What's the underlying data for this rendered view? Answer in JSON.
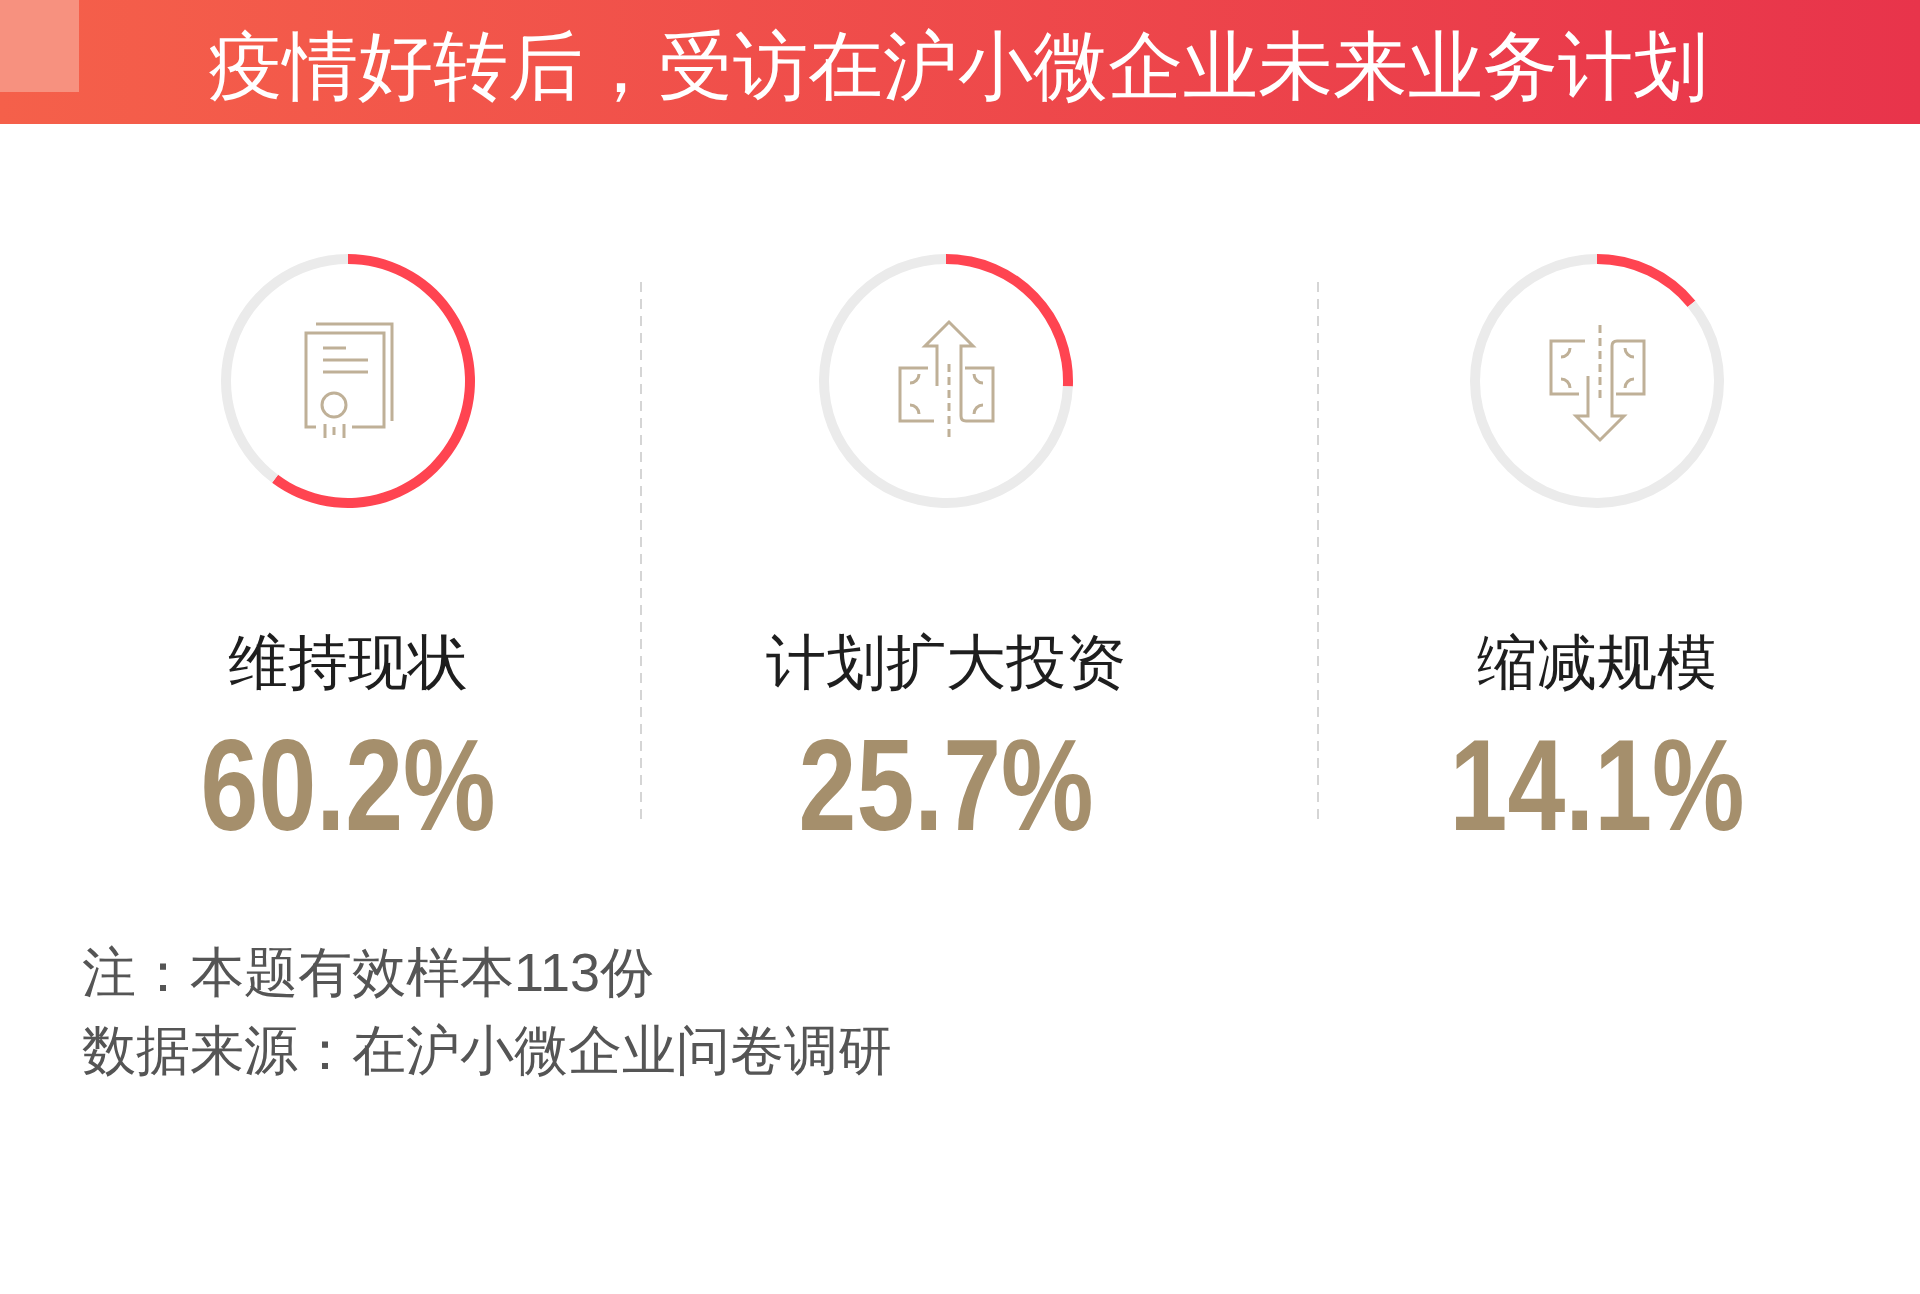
{
  "chart_data": [
    {
      "type": "other",
      "title": "疫情好转后，受访在沪小微企业未来业务计划"
    },
    {
      "type": "donut",
      "title": "维持现状",
      "categories": [
        null,
        null
      ],
      "values": [
        60.2,
        39.8
      ],
      "colors": [
        "#ff4451",
        "#ebebeb"
      ],
      "annotations": [
        "60.2%"
      ]
    },
    {
      "type": "donut",
      "title": "计划扩大投资",
      "categories": [
        null,
        null
      ],
      "values": [
        25.7,
        74.3
      ],
      "colors": [
        "#ff4451",
        "#ebebeb"
      ],
      "annotations": [
        "25.7%"
      ]
    },
    {
      "type": "donut",
      "title": "缩减规模",
      "categories": [
        null,
        null
      ],
      "values": [
        14.1,
        85.9
      ],
      "colors": [
        "#ff4451",
        "#ebebeb"
      ],
      "annotations": [
        "14.1%"
      ]
    },
    {
      "type": "other",
      "annotations": [
        "注：本题有效样本113份",
        "数据来源：在沪小微企业问卷调研"
      ]
    }
  ]
}
